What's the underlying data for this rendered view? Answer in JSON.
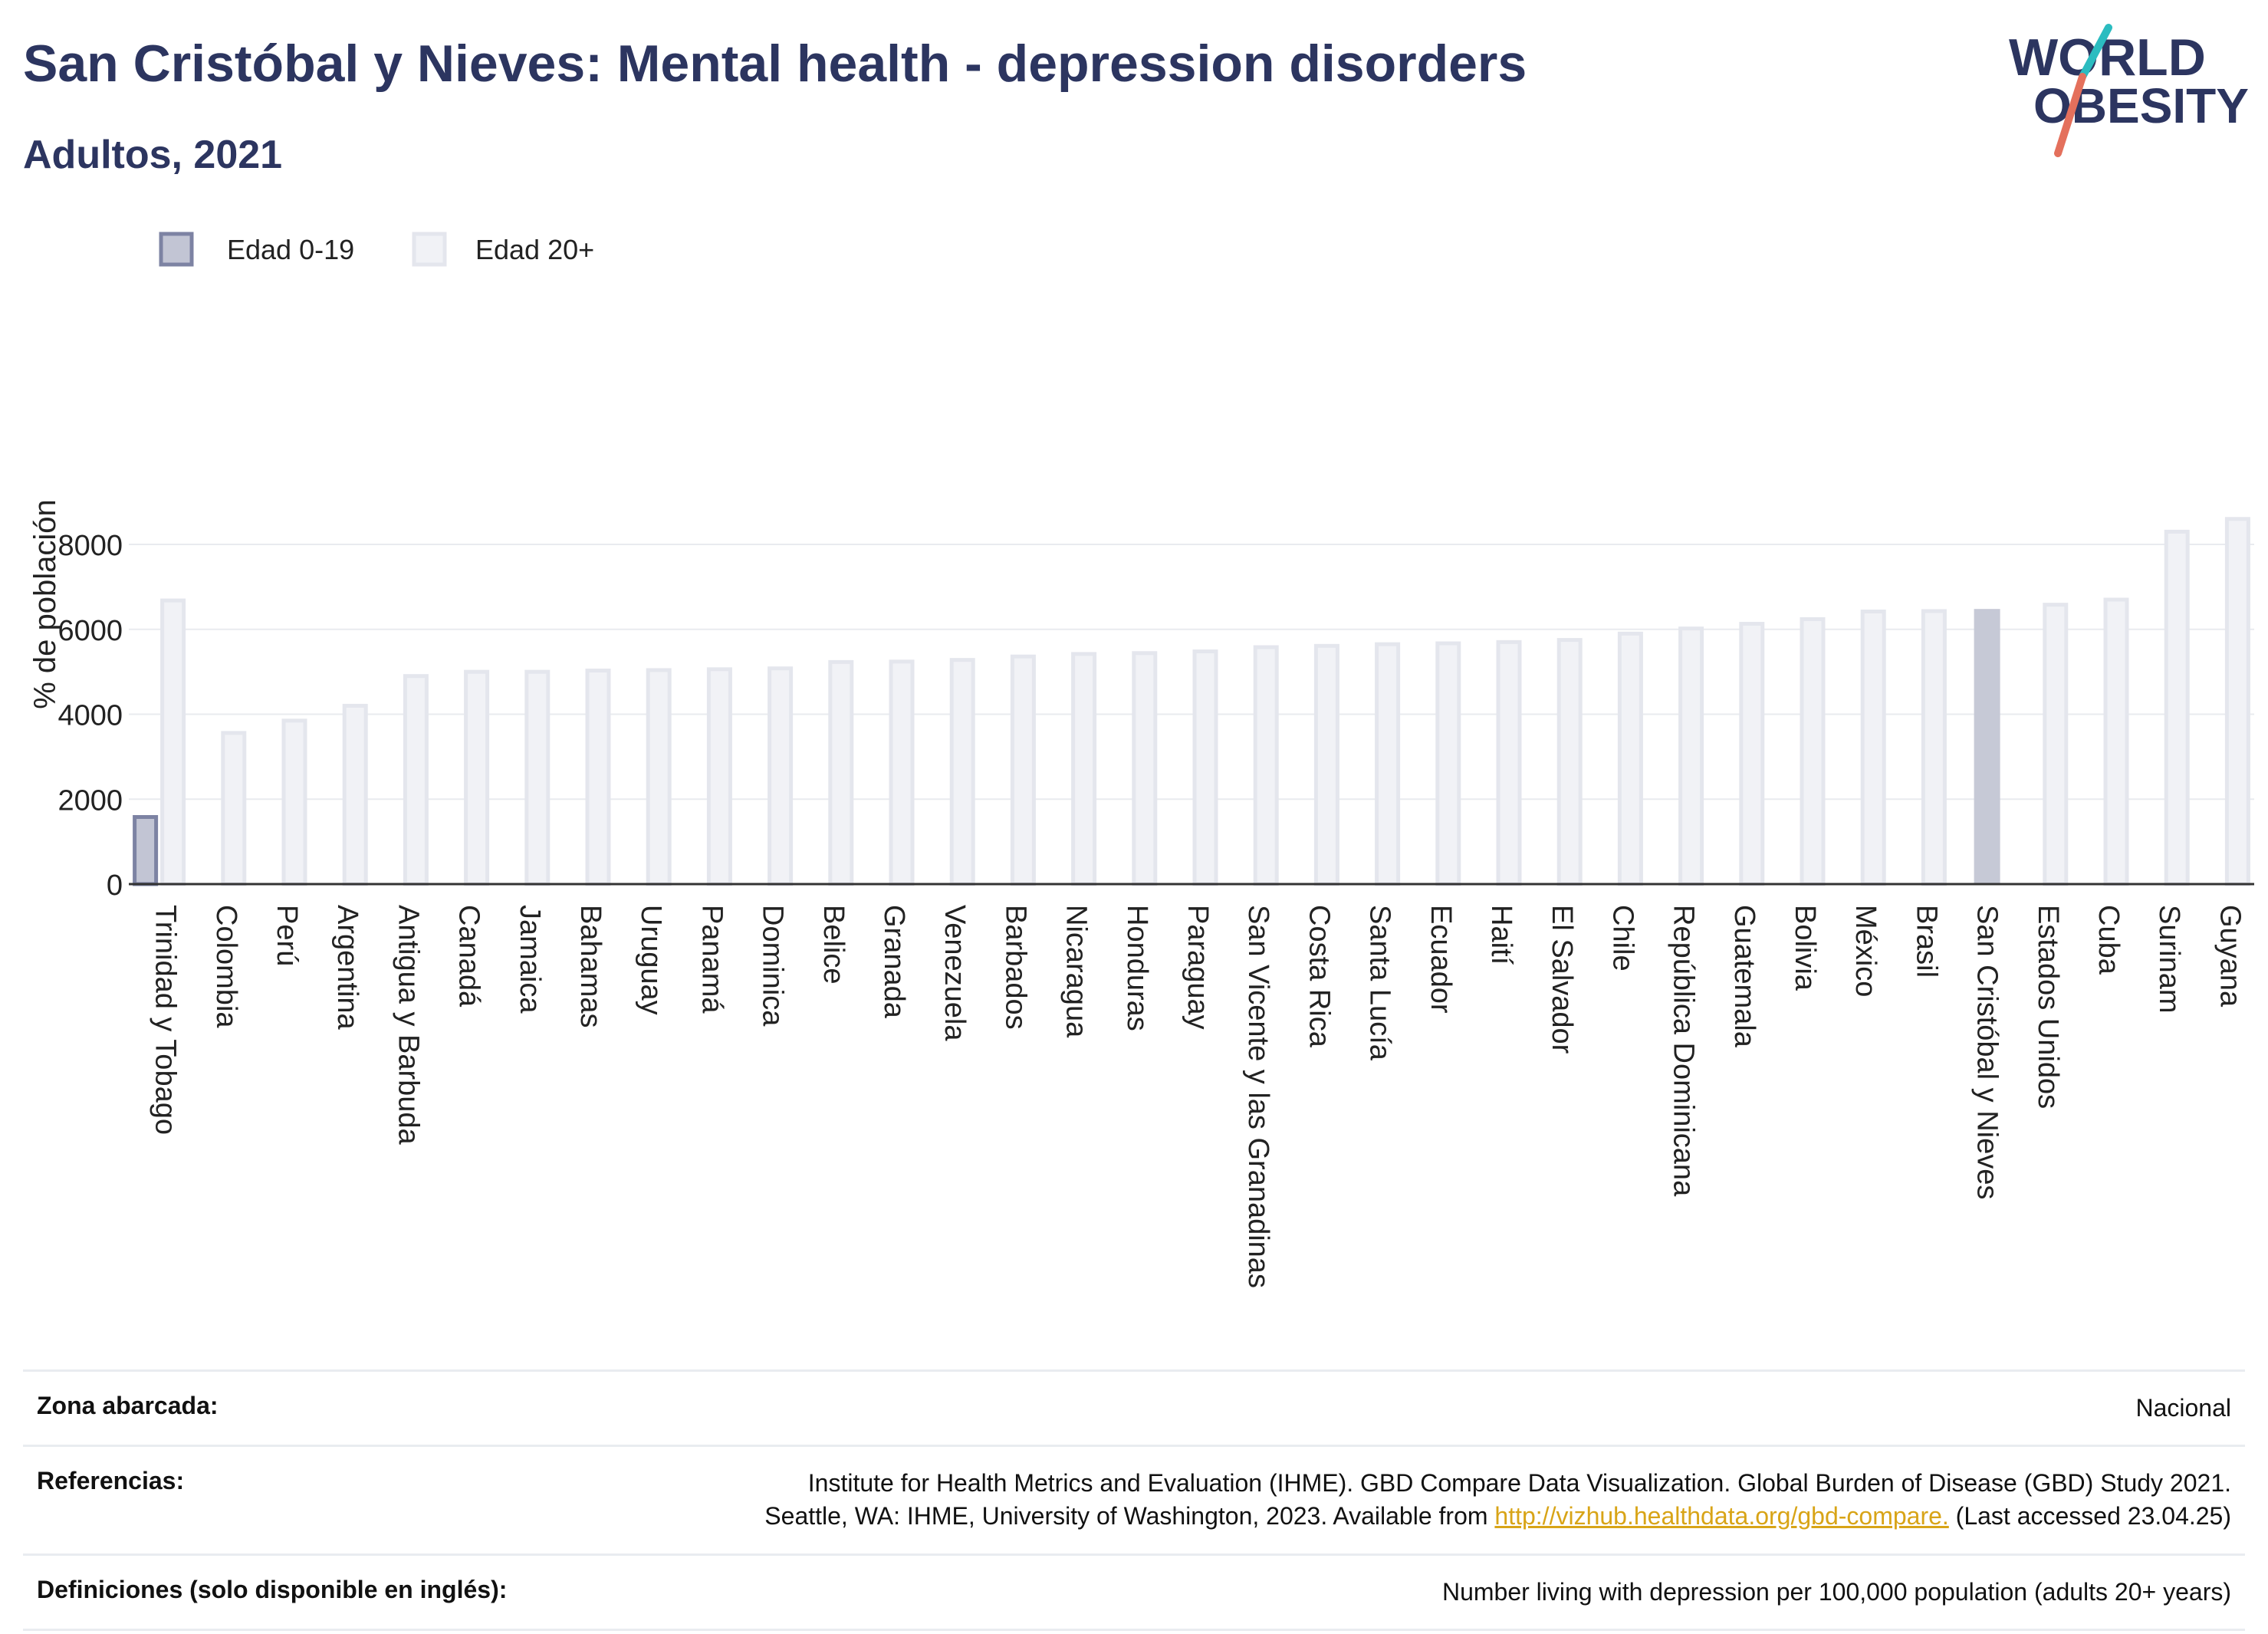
{
  "header": {
    "title": "San Cristóbal y Nieves: Mental health - depression disorders",
    "subtitle": "Adultos, 2021"
  },
  "logo": {
    "line1": "WORLD",
    "line2": "OBESITY",
    "colors": {
      "text": "#2c3560",
      "slash_top": "#2bbcc0",
      "slash_bottom": "#e4705c"
    }
  },
  "colors": {
    "highlight_fill": "#c6c9d6",
    "series_0_19_fill": "#c2c5d4",
    "series_0_19_stroke": "#7d83a3",
    "series_20_fill": "#f1f2f6",
    "series_20_stroke": "#e4e6ed",
    "grid": "#e9ebef",
    "axis": "#333333"
  },
  "chart_data": {
    "type": "bar",
    "ylabel": "% de población",
    "ylim": [
      0,
      8700
    ],
    "yticks": [
      0,
      2000,
      4000,
      6000,
      8000
    ],
    "grid": true,
    "legend_position": "top-left",
    "highlight": "San Cristóbal y Nieves",
    "categories": [
      "Trinidad y Tobago",
      "Colombia",
      "Perú",
      "Argentina",
      "Antigua y Barbuda",
      "Canadá",
      "Jamaica",
      "Bahamas",
      "Uruguay",
      "Panamá",
      "Dominica",
      "Belice",
      "Granada",
      "Venezuela",
      "Barbados",
      "Nicaragua",
      "Honduras",
      "Paraguay",
      "San Vicente y las Granadinas",
      "Costa Rica",
      "Santa Lucía",
      "Ecuador",
      "Haití",
      "El Salvador",
      "Chile",
      "República Dominicana",
      "Guatemala",
      "Bolivia",
      "México",
      "Brasil",
      "San Cristóbal y Nieves",
      "Estados Unidos",
      "Cuba",
      "Surinam",
      "Guyana"
    ],
    "series": [
      {
        "name": "Edad 0-19",
        "values": [
          1580,
          null,
          null,
          null,
          null,
          null,
          null,
          null,
          null,
          null,
          null,
          null,
          null,
          null,
          null,
          null,
          null,
          null,
          null,
          null,
          null,
          null,
          null,
          null,
          null,
          null,
          null,
          null,
          null,
          null,
          null,
          null,
          null,
          null,
          null
        ]
      },
      {
        "name": "Edad 20+",
        "values": [
          6680,
          3560,
          3850,
          4200,
          4900,
          5000,
          5000,
          5030,
          5040,
          5060,
          5080,
          5230,
          5240,
          5280,
          5360,
          5420,
          5440,
          5480,
          5580,
          5610,
          5650,
          5670,
          5700,
          5750,
          5900,
          6020,
          6130,
          6240,
          6420,
          6430,
          6480,
          6580,
          6700,
          8300,
          8600
        ]
      }
    ]
  },
  "info": {
    "coverage_label": "Zona abarcada:",
    "coverage_value": "Nacional",
    "references_label": "Referencias:",
    "references_line1": "Institute for Health Metrics and Evaluation (IHME). GBD Compare Data Visualization. Global Burden of Disease (GBD) Study 2021.",
    "references_line2_pre": "Seattle, WA: IHME, University of Washington, 2023. Available from ",
    "references_link": "http://vizhub.healthdata.org/gbd-compare.",
    "references_line2_post": " (Last accessed 23.04.25)",
    "definitions_label": "Definiciones (solo disponible en inglés):",
    "definitions_value": "Number living with depression per 100,000 population (adults 20+ years)"
  }
}
